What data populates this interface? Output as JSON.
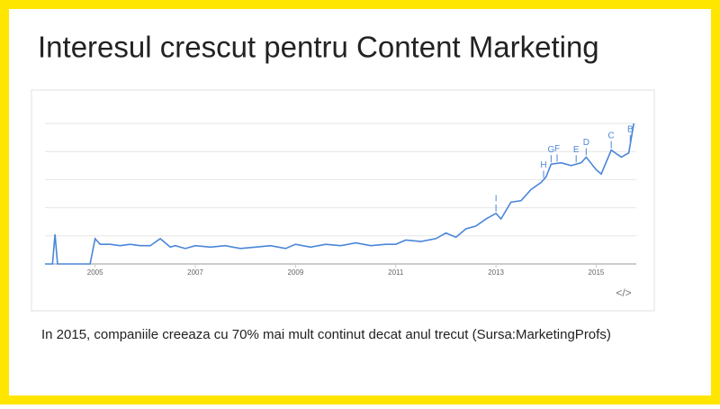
{
  "title": "Interesul crescut pentru Content Marketing",
  "caption": "In 2015, companiile creeaza cu 70% mai mult continut decat anul trecut (Sursa:MarketingProfs)",
  "embed_label": "</>",
  "chart_data": {
    "type": "line",
    "x": [
      2004.0,
      2004.15,
      2004.2,
      2004.25,
      2004.4,
      2004.9,
      2005.0,
      2005.1,
      2005.3,
      2005.5,
      2005.7,
      2005.9,
      2006.1,
      2006.3,
      2006.5,
      2006.6,
      2006.8,
      2007.0,
      2007.3,
      2007.6,
      2007.9,
      2008.2,
      2008.5,
      2008.8,
      2009.0,
      2009.3,
      2009.6,
      2009.9,
      2010.2,
      2010.5,
      2010.8,
      2011.0,
      2011.2,
      2011.5,
      2011.8,
      2012.0,
      2012.2,
      2012.4,
      2012.6,
      2012.8,
      2013.0,
      2013.1,
      2013.3,
      2013.5,
      2013.7,
      2013.9,
      2014.0,
      2014.1,
      2014.3,
      2014.5,
      2014.7,
      2014.8,
      2015.0,
      2015.1,
      2015.3,
      2015.5,
      2015.65,
      2015.75
    ],
    "series": [
      {
        "name": "Content Marketing",
        "color": "#4a86d8",
        "values": [
          0,
          0,
          21,
          0,
          0,
          0,
          18,
          14,
          14,
          13,
          14,
          13,
          13,
          18,
          12,
          13,
          11,
          13,
          12,
          13,
          11,
          12,
          13,
          11,
          14,
          12,
          14,
          13,
          15,
          13,
          14,
          14,
          17,
          16,
          18,
          22,
          19,
          25,
          27,
          32,
          36,
          32,
          44,
          45,
          53,
          58,
          62,
          71,
          72,
          70,
          72,
          76,
          67,
          64,
          81,
          76,
          79,
          100
        ]
      }
    ],
    "xlim": [
      2004,
      2015.8
    ],
    "xticks": [
      2005,
      2007,
      2009,
      2011,
      2013,
      2015
    ],
    "ylim": [
      0,
      100
    ],
    "yticks": [
      0,
      20,
      40,
      60,
      80,
      100
    ],
    "grid": true,
    "annotations": [
      {
        "label": "I",
        "x": 2013.0
      },
      {
        "label": "H",
        "x": 2013.95
      },
      {
        "label": "G",
        "x": 2014.1
      },
      {
        "label": "F",
        "x": 2014.22
      },
      {
        "label": "E",
        "x": 2014.6
      },
      {
        "label": "D",
        "x": 2014.8
      },
      {
        "label": "C",
        "x": 2015.3
      },
      {
        "label": "B",
        "x": 2015.68
      }
    ]
  }
}
